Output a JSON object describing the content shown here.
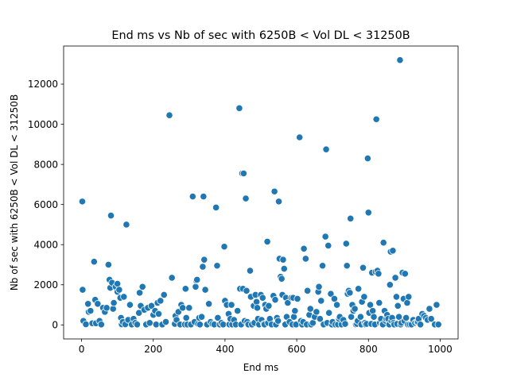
{
  "chart_data": {
    "type": "scatter",
    "title": "End ms vs Nb of sec with 6250B < Vol DL < 31250B",
    "xlabel": "End ms",
    "ylabel": "Nb of sec with 6250B < Vol DL < 31250B",
    "xlim": [
      -50,
      1050
    ],
    "ylim": [
      -700,
      13900
    ],
    "xticks": [
      "0",
      "200",
      "400",
      "600",
      "800",
      "1000"
    ],
    "yticks": [
      "0",
      "2000",
      "4000",
      "6000",
      "8000",
      "10000",
      "12000"
    ],
    "grid": false,
    "marker_color": "#1f77b4",
    "points": [
      [
        2,
        6150
      ],
      [
        3,
        1750
      ],
      [
        5,
        200
      ],
      [
        12,
        30
      ],
      [
        18,
        1050
      ],
      [
        20,
        650
      ],
      [
        25,
        700
      ],
      [
        30,
        80
      ],
      [
        35,
        3150
      ],
      [
        38,
        1250
      ],
      [
        40,
        80
      ],
      [
        45,
        1050
      ],
      [
        50,
        200
      ],
      [
        55,
        20
      ],
      [
        60,
        850
      ],
      [
        65,
        650
      ],
      [
        70,
        850
      ],
      [
        75,
        3000
      ],
      [
        78,
        2250
      ],
      [
        80,
        1850
      ],
      [
        82,
        5450
      ],
      [
        85,
        2100
      ],
      [
        88,
        800
      ],
      [
        90,
        1100
      ],
      [
        95,
        1900
      ],
      [
        100,
        2050
      ],
      [
        100,
        1650
      ],
      [
        105,
        1750
      ],
      [
        108,
        1350
      ],
      [
        110,
        350
      ],
      [
        112,
        30
      ],
      [
        115,
        150
      ],
      [
        118,
        1400
      ],
      [
        122,
        30
      ],
      [
        125,
        5000
      ],
      [
        130,
        250
      ],
      [
        135,
        1000
      ],
      [
        140,
        20
      ],
      [
        145,
        300
      ],
      [
        150,
        100
      ],
      [
        155,
        20
      ],
      [
        160,
        600
      ],
      [
        162,
        1600
      ],
      [
        165,
        950
      ],
      [
        170,
        1900
      ],
      [
        175,
        750
      ],
      [
        180,
        20
      ],
      [
        185,
        850
      ],
      [
        190,
        100
      ],
      [
        195,
        950
      ],
      [
        200,
        500
      ],
      [
        205,
        700
      ],
      [
        208,
        20
      ],
      [
        212,
        1100
      ],
      [
        215,
        550
      ],
      [
        220,
        1200
      ],
      [
        225,
        20
      ],
      [
        230,
        1500
      ],
      [
        235,
        150
      ],
      [
        245,
        10450
      ],
      [
        252,
        2350
      ],
      [
        260,
        50
      ],
      [
        262,
        450
      ],
      [
        265,
        250
      ],
      [
        270,
        650
      ],
      [
        275,
        20
      ],
      [
        278,
        1000
      ],
      [
        282,
        850
      ],
      [
        288,
        20
      ],
      [
        290,
        1800
      ],
      [
        292,
        350
      ],
      [
        295,
        20
      ],
      [
        300,
        850
      ],
      [
        305,
        20
      ],
      [
        310,
        6400
      ],
      [
        315,
        150
      ],
      [
        318,
        1900
      ],
      [
        320,
        2200
      ],
      [
        322,
        2250
      ],
      [
        325,
        50
      ],
      [
        328,
        350
      ],
      [
        330,
        20
      ],
      [
        335,
        400
      ],
      [
        338,
        2900
      ],
      [
        340,
        6400
      ],
      [
        342,
        3250
      ],
      [
        345,
        1750
      ],
      [
        350,
        20
      ],
      [
        355,
        1050
      ],
      [
        360,
        150
      ],
      [
        365,
        50
      ],
      [
        370,
        20
      ],
      [
        375,
        5850
      ],
      [
        378,
        2950
      ],
      [
        380,
        350
      ],
      [
        385,
        20
      ],
      [
        390,
        100
      ],
      [
        395,
        20
      ],
      [
        398,
        3900
      ],
      [
        400,
        1200
      ],
      [
        405,
        1000
      ],
      [
        410,
        550
      ],
      [
        412,
        20
      ],
      [
        415,
        300
      ],
      [
        418,
        1000
      ],
      [
        420,
        20
      ],
      [
        425,
        250
      ],
      [
        430,
        20
      ],
      [
        435,
        700
      ],
      [
        440,
        10800
      ],
      [
        442,
        1800
      ],
      [
        445,
        20
      ],
      [
        448,
        7550
      ],
      [
        450,
        1800
      ],
      [
        452,
        7550
      ],
      [
        455,
        200
      ],
      [
        458,
        6300
      ],
      [
        460,
        1700
      ],
      [
        462,
        150
      ],
      [
        465,
        20
      ],
      [
        470,
        2700
      ],
      [
        472,
        1400
      ],
      [
        475,
        20
      ],
      [
        480,
        950
      ],
      [
        482,
        100
      ],
      [
        485,
        1500
      ],
      [
        488,
        1150
      ],
      [
        490,
        850
      ],
      [
        492,
        300
      ],
      [
        495,
        20
      ],
      [
        500,
        1500
      ],
      [
        502,
        250
      ],
      [
        505,
        1350
      ],
      [
        508,
        50
      ],
      [
        510,
        20
      ],
      [
        512,
        1000
      ],
      [
        515,
        800
      ],
      [
        518,
        4150
      ],
      [
        520,
        100
      ],
      [
        522,
        950
      ],
      [
        525,
        300
      ],
      [
        530,
        20
      ],
      [
        535,
        1450
      ],
      [
        538,
        6650
      ],
      [
        540,
        1250
      ],
      [
        542,
        20
      ],
      [
        545,
        350
      ],
      [
        548,
        200
      ],
      [
        550,
        6150
      ],
      [
        552,
        3300
      ],
      [
        555,
        2400
      ],
      [
        558,
        2300
      ],
      [
        560,
        1500
      ],
      [
        562,
        3250
      ],
      [
        565,
        2800
      ],
      [
        568,
        20
      ],
      [
        570,
        1350
      ],
      [
        572,
        400
      ],
      [
        575,
        1100
      ],
      [
        580,
        150
      ],
      [
        585,
        1350
      ],
      [
        588,
        20
      ],
      [
        590,
        1350
      ],
      [
        592,
        400
      ],
      [
        595,
        700
      ],
      [
        598,
        20
      ],
      [
        602,
        1300
      ],
      [
        608,
        9350
      ],
      [
        612,
        200
      ],
      [
        615,
        20
      ],
      [
        618,
        150
      ],
      [
        620,
        3800
      ],
      [
        625,
        3300
      ],
      [
        628,
        20
      ],
      [
        630,
        1700
      ],
      [
        635,
        500
      ],
      [
        638,
        800
      ],
      [
        640,
        20
      ],
      [
        645,
        100
      ],
      [
        650,
        400
      ],
      [
        655,
        650
      ],
      [
        660,
        1650
      ],
      [
        662,
        1900
      ],
      [
        665,
        300
      ],
      [
        668,
        1200
      ],
      [
        672,
        2950
      ],
      [
        675,
        20
      ],
      [
        680,
        4400
      ],
      [
        682,
        8750
      ],
      [
        685,
        100
      ],
      [
        688,
        3950
      ],
      [
        690,
        600
      ],
      [
        695,
        1550
      ],
      [
        698,
        20
      ],
      [
        700,
        150
      ],
      [
        705,
        1300
      ],
      [
        708,
        20
      ],
      [
        712,
        1000
      ],
      [
        715,
        20
      ],
      [
        718,
        300
      ],
      [
        720,
        400
      ],
      [
        725,
        20
      ],
      [
        730,
        250
      ],
      [
        735,
        50
      ],
      [
        738,
        4050
      ],
      [
        740,
        2950
      ],
      [
        742,
        1550
      ],
      [
        745,
        1700
      ],
      [
        748,
        1600
      ],
      [
        750,
        5300
      ],
      [
        752,
        400
      ],
      [
        755,
        1000
      ],
      [
        758,
        700
      ],
      [
        762,
        800
      ],
      [
        765,
        20
      ],
      [
        768,
        50
      ],
      [
        770,
        200
      ],
      [
        772,
        1800
      ],
      [
        778,
        400
      ],
      [
        780,
        20
      ],
      [
        782,
        1150
      ],
      [
        785,
        2850
      ],
      [
        788,
        1400
      ],
      [
        790,
        100
      ],
      [
        792,
        20
      ],
      [
        795,
        50
      ],
      [
        798,
        8300
      ],
      [
        800,
        5600
      ],
      [
        802,
        600
      ],
      [
        805,
        1000
      ],
      [
        808,
        50
      ],
      [
        810,
        2600
      ],
      [
        812,
        700
      ],
      [
        815,
        400
      ],
      [
        818,
        20
      ],
      [
        820,
        2650
      ],
      [
        822,
        10250
      ],
      [
        825,
        2700
      ],
      [
        828,
        2550
      ],
      [
        830,
        1100
      ],
      [
        832,
        100
      ],
      [
        835,
        300
      ],
      [
        838,
        20
      ],
      [
        840,
        20
      ],
      [
        842,
        4100
      ],
      [
        845,
        700
      ],
      [
        848,
        200
      ],
      [
        850,
        300
      ],
      [
        852,
        500
      ],
      [
        855,
        300
      ],
      [
        858,
        20
      ],
      [
        860,
        2000
      ],
      [
        862,
        3650
      ],
      [
        864,
        200
      ],
      [
        866,
        350
      ],
      [
        868,
        3700
      ],
      [
        870,
        100
      ],
      [
        872,
        20
      ],
      [
        875,
        2350
      ],
      [
        878,
        1400
      ],
      [
        880,
        50
      ],
      [
        882,
        950
      ],
      [
        885,
        400
      ],
      [
        888,
        13200
      ],
      [
        890,
        20
      ],
      [
        892,
        100
      ],
      [
        895,
        2600
      ],
      [
        898,
        1300
      ],
      [
        900,
        200
      ],
      [
        902,
        2550
      ],
      [
        905,
        350
      ],
      [
        908,
        1100
      ],
      [
        910,
        20
      ],
      [
        912,
        1400
      ],
      [
        915,
        20
      ],
      [
        920,
        20
      ],
      [
        925,
        250
      ],
      [
        930,
        100
      ],
      [
        935,
        150
      ],
      [
        938,
        150
      ],
      [
        940,
        300
      ],
      [
        945,
        20
      ],
      [
        950,
        550
      ],
      [
        955,
        450
      ],
      [
        960,
        350
      ],
      [
        965,
        250
      ],
      [
        970,
        800
      ],
      [
        975,
        300
      ],
      [
        985,
        20
      ],
      [
        990,
        1000
      ],
      [
        995,
        20
      ]
    ]
  }
}
